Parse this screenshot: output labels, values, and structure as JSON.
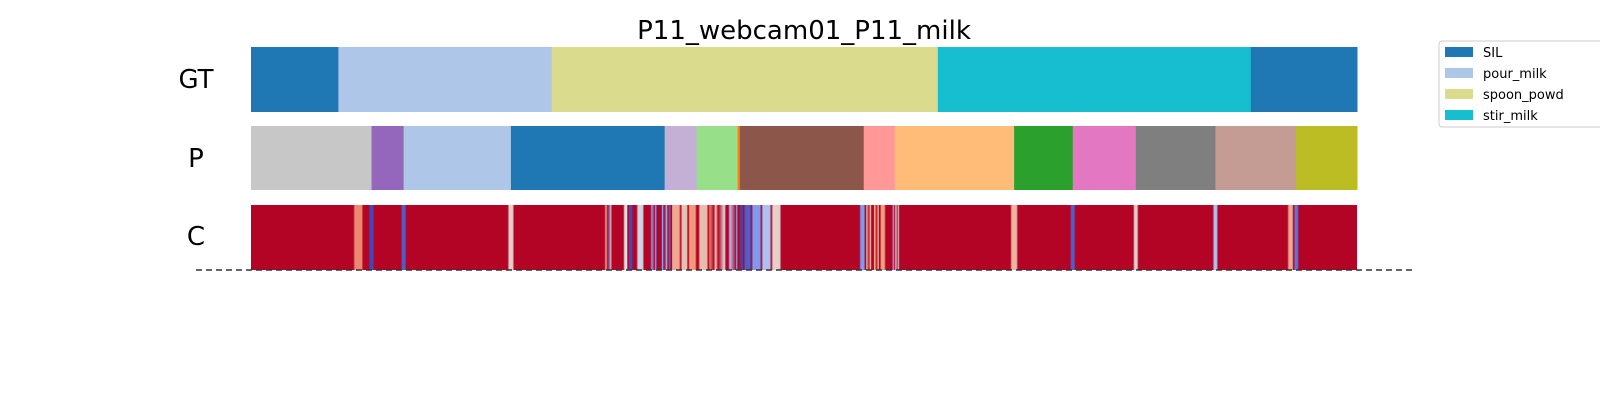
{
  "chart_data": {
    "type": "segmentation",
    "title": "P11_webcam01_P11_milk",
    "x_range": [
      0,
      1
    ],
    "rows": [
      {
        "label": "GT",
        "segments": [
          {
            "start": 0.0,
            "end": 0.079,
            "color": "#1f77b4"
          },
          {
            "start": 0.079,
            "end": 0.272,
            "color": "#aec7e8"
          },
          {
            "start": 0.272,
            "end": 0.621,
            "color": "#dbdb8d"
          },
          {
            "start": 0.621,
            "end": 0.904,
            "color": "#17becf"
          },
          {
            "start": 0.904,
            "end": 1.0,
            "color": "#1f77b4"
          }
        ]
      },
      {
        "label": "P",
        "segments": [
          {
            "start": 0.0,
            "end": 0.109,
            "color": "#c7c7c7"
          },
          {
            "start": 0.109,
            "end": 0.138,
            "color": "#9467bd"
          },
          {
            "start": 0.138,
            "end": 0.235,
            "color": "#aec7e8"
          },
          {
            "start": 0.235,
            "end": 0.374,
            "color": "#1f77b4"
          },
          {
            "start": 0.374,
            "end": 0.403,
            "color": "#c5b0d5"
          },
          {
            "start": 0.403,
            "end": 0.44,
            "color": "#98df8a"
          },
          {
            "start": 0.44,
            "end": 0.442,
            "color": "#ff7f0e"
          },
          {
            "start": 0.442,
            "end": 0.554,
            "color": "#8c564b"
          },
          {
            "start": 0.554,
            "end": 0.582,
            "color": "#ff9896"
          },
          {
            "start": 0.582,
            "end": 0.69,
            "color": "#ffbb78"
          },
          {
            "start": 0.69,
            "end": 0.743,
            "color": "#2ca02c"
          },
          {
            "start": 0.743,
            "end": 0.8,
            "color": "#e377c2"
          },
          {
            "start": 0.8,
            "end": 0.872,
            "color": "#7f7f7f"
          },
          {
            "start": 0.872,
            "end": 0.945,
            "color": "#c49c94"
          },
          {
            "start": 0.945,
            "end": 1.0,
            "color": "#bcbd22"
          }
        ]
      },
      {
        "label": "C",
        "colormap": "coolwarm",
        "base_value": 1.0,
        "dips": [
          {
            "pos": 0.097,
            "width": 0.006,
            "value": 0.78
          },
          {
            "pos": 0.109,
            "width": 0.002,
            "value": 0.0
          },
          {
            "pos": 0.138,
            "width": 0.002,
            "value": 0.05
          },
          {
            "pos": 0.235,
            "width": 0.003,
            "value": 0.55
          },
          {
            "pos": 0.323,
            "width": 0.004,
            "value": 0.7
          },
          {
            "pos": 0.325,
            "width": 0.002,
            "value": 0.1
          },
          {
            "pos": 0.339,
            "width": 0.002,
            "value": 0.5
          },
          {
            "pos": 0.343,
            "width": 0.002,
            "value": 0.0
          },
          {
            "pos": 0.352,
            "width": 0.004,
            "value": 0.45
          },
          {
            "pos": 0.364,
            "width": 0.003,
            "value": 0.2
          },
          {
            "pos": 0.369,
            "width": 0.005,
            "value": 0.1
          },
          {
            "pos": 0.374,
            "width": 0.003,
            "value": 0.35
          },
          {
            "pos": 0.377,
            "width": 0.004,
            "value": 0.1
          },
          {
            "pos": 0.384,
            "width": 0.006,
            "value": 0.7
          },
          {
            "pos": 0.392,
            "width": 0.004,
            "value": 0.6
          },
          {
            "pos": 0.399,
            "width": 0.005,
            "value": 0.75
          },
          {
            "pos": 0.409,
            "width": 0.006,
            "value": 0.62
          },
          {
            "pos": 0.418,
            "width": 0.006,
            "value": 0.8
          },
          {
            "pos": 0.424,
            "width": 0.008,
            "value": 0.5
          },
          {
            "pos": 0.436,
            "width": 0.006,
            "value": 0.35
          },
          {
            "pos": 0.442,
            "width": 0.004,
            "value": 0.0
          },
          {
            "pos": 0.449,
            "width": 0.004,
            "value": 0.05
          },
          {
            "pos": 0.457,
            "width": 0.006,
            "value": 0.2
          },
          {
            "pos": 0.466,
            "width": 0.006,
            "value": 0.35
          },
          {
            "pos": 0.475,
            "width": 0.006,
            "value": 0.55
          },
          {
            "pos": 0.553,
            "width": 0.003,
            "value": 0.2
          },
          {
            "pos": 0.558,
            "width": 0.003,
            "value": 0.62
          },
          {
            "pos": 0.562,
            "width": 0.003,
            "value": 0.72
          },
          {
            "pos": 0.566,
            "width": 0.003,
            "value": 0.68
          },
          {
            "pos": 0.571,
            "width": 0.003,
            "value": 0.74
          },
          {
            "pos": 0.582,
            "width": 0.002,
            "value": 0.3
          },
          {
            "pos": 0.584,
            "width": 0.002,
            "value": 0.5
          },
          {
            "pos": 0.69,
            "width": 0.004,
            "value": 0.65
          },
          {
            "pos": 0.743,
            "width": 0.002,
            "value": 0.05
          },
          {
            "pos": 0.8,
            "width": 0.002,
            "value": 0.55
          },
          {
            "pos": 0.872,
            "width": 0.002,
            "value": 0.35
          },
          {
            "pos": 0.94,
            "width": 0.003,
            "value": 0.7
          },
          {
            "pos": 0.945,
            "width": 0.002,
            "value": 0.1
          }
        ]
      }
    ],
    "legend": {
      "placement": "top-right",
      "entries": [
        {
          "label": "SIL",
          "color": "#1f77b4"
        },
        {
          "label": "pour_milk",
          "color": "#aec7e8"
        },
        {
          "label": "spoon_powd",
          "color": "#dbdb8d"
        },
        {
          "label": "stir_milk",
          "color": "#17becf"
        }
      ]
    }
  }
}
